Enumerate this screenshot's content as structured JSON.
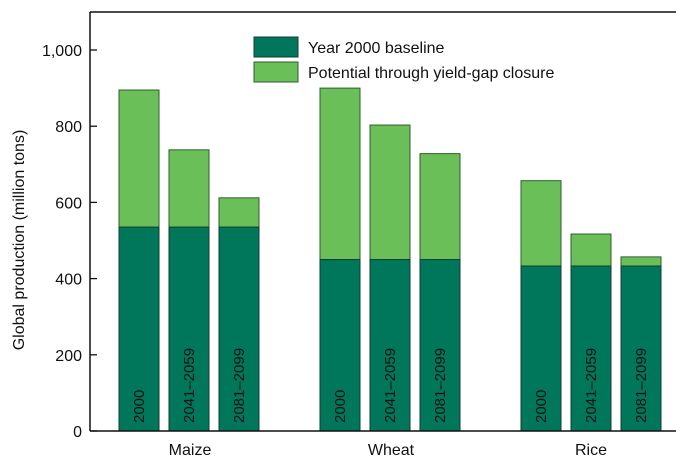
{
  "chart_data": {
    "type": "bar",
    "stacked": true,
    "ylabel": "Global production (million tons)",
    "ylim": [
      0,
      1000
    ],
    "yticks": [
      0,
      200,
      400,
      600,
      800,
      1000
    ],
    "ytick_labels": [
      "0",
      "200",
      "400",
      "600",
      "800",
      "1,000"
    ],
    "legend_placement": "top-center",
    "groups": [
      {
        "name": "Maize",
        "bars": [
          {
            "label": "2000",
            "baseline": 535,
            "total": 895
          },
          {
            "label": "2041–2059",
            "baseline": 535,
            "total": 738
          },
          {
            "label": "2081–2099",
            "baseline": 535,
            "total": 612
          }
        ]
      },
      {
        "name": "Wheat",
        "bars": [
          {
            "label": "2000",
            "baseline": 450,
            "total": 900
          },
          {
            "label": "2041–2059",
            "baseline": 450,
            "total": 803
          },
          {
            "label": "2081–2099",
            "baseline": 450,
            "total": 728
          }
        ]
      },
      {
        "name": "Rice",
        "bars": [
          {
            "label": "2000",
            "baseline": 433,
            "total": 657
          },
          {
            "label": "2041–2059",
            "baseline": 433,
            "total": 517
          },
          {
            "label": "2081–2099",
            "baseline": 433,
            "total": 457
          }
        ]
      }
    ],
    "series": [
      {
        "name": "Year 2000 baseline",
        "color": "#00775a"
      },
      {
        "name": "Potential through yield-gap closure",
        "color": "#6bbf59"
      }
    ]
  }
}
